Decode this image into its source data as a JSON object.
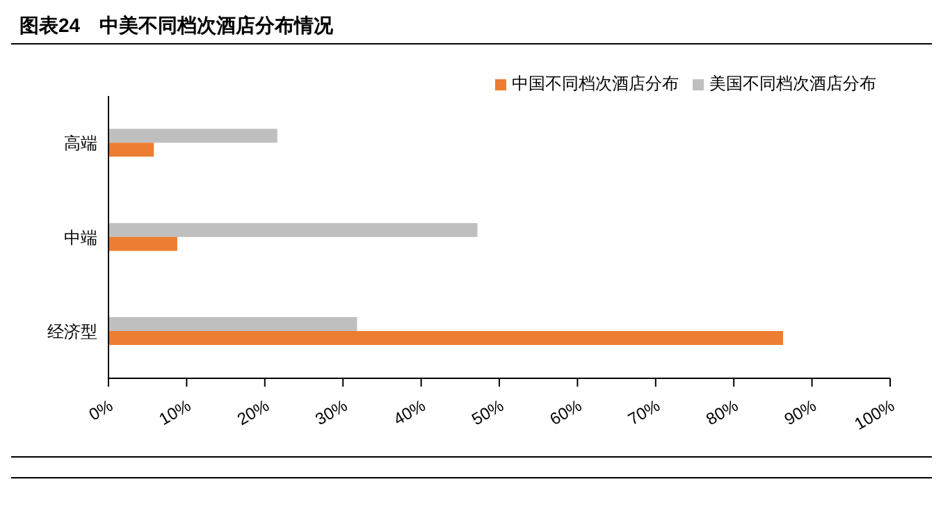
{
  "chart_data": {
    "type": "bar",
    "orientation": "horizontal",
    "title": "图表24　中美不同档次酒店分布情况",
    "categories": [
      "高端",
      "中端",
      "经济型"
    ],
    "series": [
      {
        "name": "美国不同档次酒店分布",
        "color": "#bfbfbf",
        "values": [
          21.6,
          47.2,
          31.8
        ]
      },
      {
        "name": "中国不同档次酒店分布",
        "color": "#ed7d31",
        "values": [
          5.8,
          8.8,
          86.3
        ]
      }
    ],
    "xlim": [
      0,
      100
    ],
    "xticks": [
      {
        "value": 0,
        "label": "0%"
      },
      {
        "value": 10,
        "label": "10%"
      },
      {
        "value": 20,
        "label": "20%"
      },
      {
        "value": 30,
        "label": "30%"
      },
      {
        "value": 40,
        "label": "40%"
      },
      {
        "value": 50,
        "label": "50%"
      },
      {
        "value": 60,
        "label": "60%"
      },
      {
        "value": 70,
        "label": "70%"
      },
      {
        "value": 80,
        "label": "80%"
      },
      {
        "value": 90,
        "label": "90%"
      },
      {
        "value": 100,
        "label": "100%"
      }
    ],
    "grid": false,
    "legend": "top right"
  }
}
